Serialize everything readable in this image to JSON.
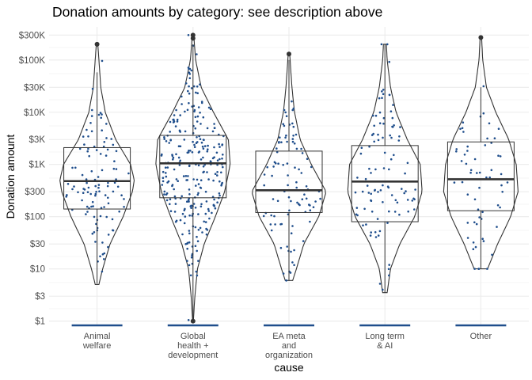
{
  "chart_data": {
    "type": "violin+box+jitter",
    "title": "Donation amounts by category: see description above",
    "xlabel": "cause",
    "ylabel": "Donation amount",
    "y_scale": "log10",
    "ylim": [
      0.8,
      430000
    ],
    "y_ticks": [
      1,
      3,
      10,
      30,
      100,
      300,
      1000,
      3000,
      10000,
      30000,
      100000,
      300000
    ],
    "y_tick_labels": [
      "$1",
      "$3",
      "$10",
      "$30",
      "$100",
      "$300",
      "$1K",
      "$3K",
      "$10K",
      "$30K",
      "$100K",
      "$300K"
    ],
    "grid": true,
    "colors": {
      "point": "#1f4e8c",
      "outline": "#333333",
      "grid": "#ebebeb",
      "rug": "#1f4e8c"
    },
    "categories": [
      {
        "label_lines": [
          "Animal",
          "welfare"
        ],
        "box": {
          "whisker_low": 5,
          "q1": 140,
          "median": 480,
          "q3": 2100,
          "whisker_high": 58000
        },
        "outliers": [
          200000
        ],
        "violin": {
          "y_min": 5,
          "y_max": 200000,
          "density": [
            [
              5,
              0.05
            ],
            [
              10,
              0.15
            ],
            [
              30,
              0.35
            ],
            [
              100,
              0.7
            ],
            [
              300,
              0.95
            ],
            [
              500,
              1.0
            ],
            [
              1000,
              0.9
            ],
            [
              3000,
              0.5
            ],
            [
              10000,
              0.22
            ],
            [
              30000,
              0.1
            ],
            [
              100000,
              0.05
            ],
            [
              200000,
              0.02
            ]
          ]
        },
        "n_points": 110
      },
      {
        "label_lines": [
          "Global",
          "health +",
          "development"
        ],
        "box": {
          "whisker_low": 1,
          "q1": 230,
          "median": 1050,
          "q3": 3600,
          "whisker_high": 200000
        },
        "outliers": [
          1,
          260000,
          300000
        ],
        "violin": {
          "y_min": 1,
          "y_max": 300000,
          "density": [
            [
              1,
              0.01
            ],
            [
              3,
              0.05
            ],
            [
              10,
              0.12
            ],
            [
              30,
              0.3
            ],
            [
              100,
              0.6
            ],
            [
              300,
              0.85
            ],
            [
              1000,
              1.0
            ],
            [
              3000,
              0.95
            ],
            [
              10000,
              0.55
            ],
            [
              30000,
              0.22
            ],
            [
              100000,
              0.07
            ],
            [
              300000,
              0.02
            ]
          ]
        },
        "n_points": 280
      },
      {
        "label_lines": [
          "EA meta",
          "and",
          "organization"
        ],
        "box": {
          "whisker_low": 6,
          "q1": 120,
          "median": 320,
          "q3": 1800,
          "whisker_high": 100000
        },
        "outliers": [
          130000
        ],
        "violin": {
          "y_min": 6,
          "y_max": 130000,
          "density": [
            [
              6,
              0.1
            ],
            [
              10,
              0.2
            ],
            [
              30,
              0.4
            ],
            [
              100,
              0.8
            ],
            [
              300,
              1.0
            ],
            [
              1000,
              0.6
            ],
            [
              3000,
              0.3
            ],
            [
              10000,
              0.15
            ],
            [
              30000,
              0.08
            ],
            [
              130000,
              0.02
            ]
          ]
        },
        "n_points": 95
      },
      {
        "label_lines": [
          "Long term",
          "& AI"
        ],
        "box": {
          "whisker_low": 3.5,
          "q1": 80,
          "median": 470,
          "q3": 2300,
          "whisker_high": 200000
        },
        "outliers": [],
        "violin": {
          "y_min": 3.5,
          "y_max": 200000,
          "density": [
            [
              3.5,
              0.06
            ],
            [
              10,
              0.15
            ],
            [
              30,
              0.4
            ],
            [
              100,
              0.8
            ],
            [
              300,
              1.0
            ],
            [
              1000,
              0.95
            ],
            [
              3000,
              0.6
            ],
            [
              10000,
              0.3
            ],
            [
              30000,
              0.15
            ],
            [
              100000,
              0.06
            ],
            [
              200000,
              0.04
            ]
          ]
        },
        "n_points": 100
      },
      {
        "label_lines": [
          "Other"
        ],
        "box": {
          "whisker_low": 10,
          "q1": 130,
          "median": 520,
          "q3": 2700,
          "whisker_high": 30000
        },
        "outliers": [
          270000
        ],
        "violin": {
          "y_min": 10,
          "y_max": 270000,
          "density": [
            [
              10,
              0.18
            ],
            [
              30,
              0.45
            ],
            [
              100,
              0.8
            ],
            [
              300,
              1.0
            ],
            [
              1000,
              0.95
            ],
            [
              3000,
              0.75
            ],
            [
              10000,
              0.4
            ],
            [
              30000,
              0.15
            ],
            [
              100000,
              0.05
            ],
            [
              270000,
              0.02
            ]
          ]
        },
        "n_points": 60
      }
    ]
  }
}
